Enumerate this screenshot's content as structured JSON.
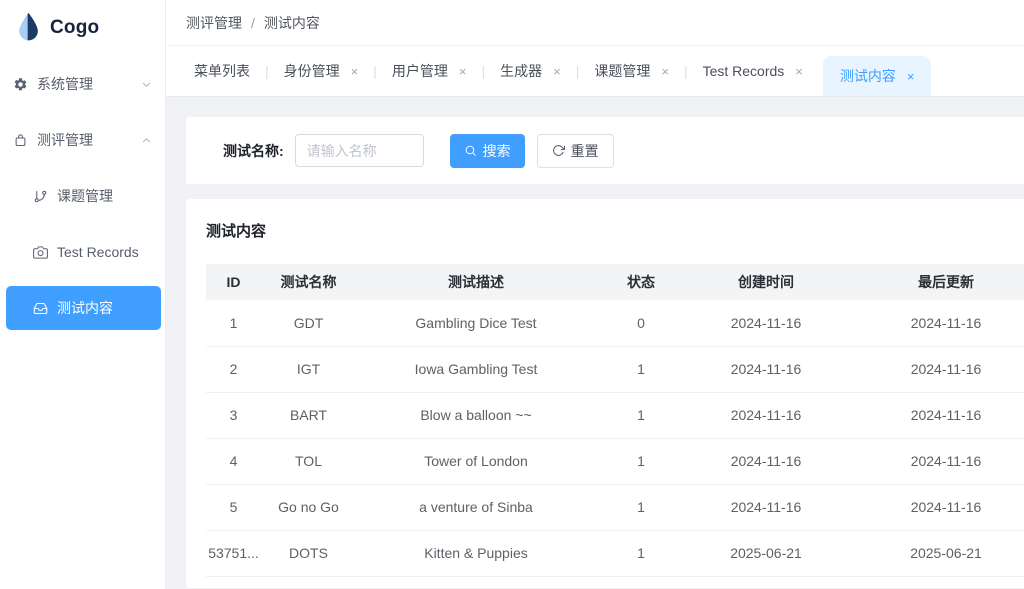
{
  "app": {
    "logo_text": "Cogo"
  },
  "colors": {
    "primary": "#409eff",
    "active_tab_bg": "#e8f4ff",
    "page_bg": "#f0f2f5",
    "table_header_bg": "#f3f4f6"
  },
  "sidebar": {
    "items": [
      {
        "name": "system-management",
        "label": "系统管理",
        "icon": "gear-icon",
        "chevron": "down",
        "sub": false,
        "active": false
      },
      {
        "name": "assessment-management",
        "label": "测评管理",
        "icon": "bag-icon",
        "chevron": "up",
        "sub": false,
        "active": false
      },
      {
        "name": "project-management",
        "label": "课题管理",
        "icon": "branch-icon",
        "sub": true,
        "active": false
      },
      {
        "name": "test-records",
        "label": "Test Records",
        "icon": "camera-icon",
        "sub": true,
        "active": false
      },
      {
        "name": "test-content",
        "label": "测试内容",
        "icon": "inbox-icon",
        "sub": true,
        "active": true
      }
    ]
  },
  "breadcrumb": {
    "separator": "/",
    "items": [
      "测评管理",
      "测试内容"
    ]
  },
  "tabs": [
    {
      "name": "menu-list",
      "label": "菜单列表",
      "closable": false,
      "active": false
    },
    {
      "name": "identity-management",
      "label": "身份管理",
      "closable": true,
      "active": false
    },
    {
      "name": "user-management",
      "label": "用户管理",
      "closable": true,
      "active": false
    },
    {
      "name": "generator",
      "label": "生成器",
      "closable": true,
      "active": false
    },
    {
      "name": "project-management",
      "label": "课题管理",
      "closable": true,
      "active": false
    },
    {
      "name": "test-records",
      "label": "Test Records",
      "closable": true,
      "active": false
    },
    {
      "name": "test-content",
      "label": "测试内容",
      "closable": true,
      "active": true
    }
  ],
  "search": {
    "label": "测试名称:",
    "placeholder": "请输入名称",
    "value": "",
    "search_button": "搜索",
    "reset_button": "重置"
  },
  "table": {
    "title": "测试内容",
    "columns": [
      "ID",
      "测试名称",
      "测试描述",
      "状态",
      "创建时间",
      "最后更新"
    ],
    "rows": [
      [
        "1",
        "GDT",
        "Gambling Dice Test",
        "0",
        "2024-11-16",
        "2024-11-16"
      ],
      [
        "2",
        "IGT",
        "Iowa Gambling Test",
        "1",
        "2024-11-16",
        "2024-11-16"
      ],
      [
        "3",
        "BART",
        "Blow a balloon ~~",
        "1",
        "2024-11-16",
        "2024-11-16"
      ],
      [
        "4",
        "TOL",
        "Tower of London",
        "1",
        "2024-11-16",
        "2024-11-16"
      ],
      [
        "5",
        "Go no Go",
        "a venture of Sinba",
        "1",
        "2024-11-16",
        "2024-11-16"
      ],
      [
        "53751...",
        "DOTS",
        "Kitten & Puppies",
        "1",
        "2025-06-21",
        "2025-06-21"
      ]
    ]
  }
}
